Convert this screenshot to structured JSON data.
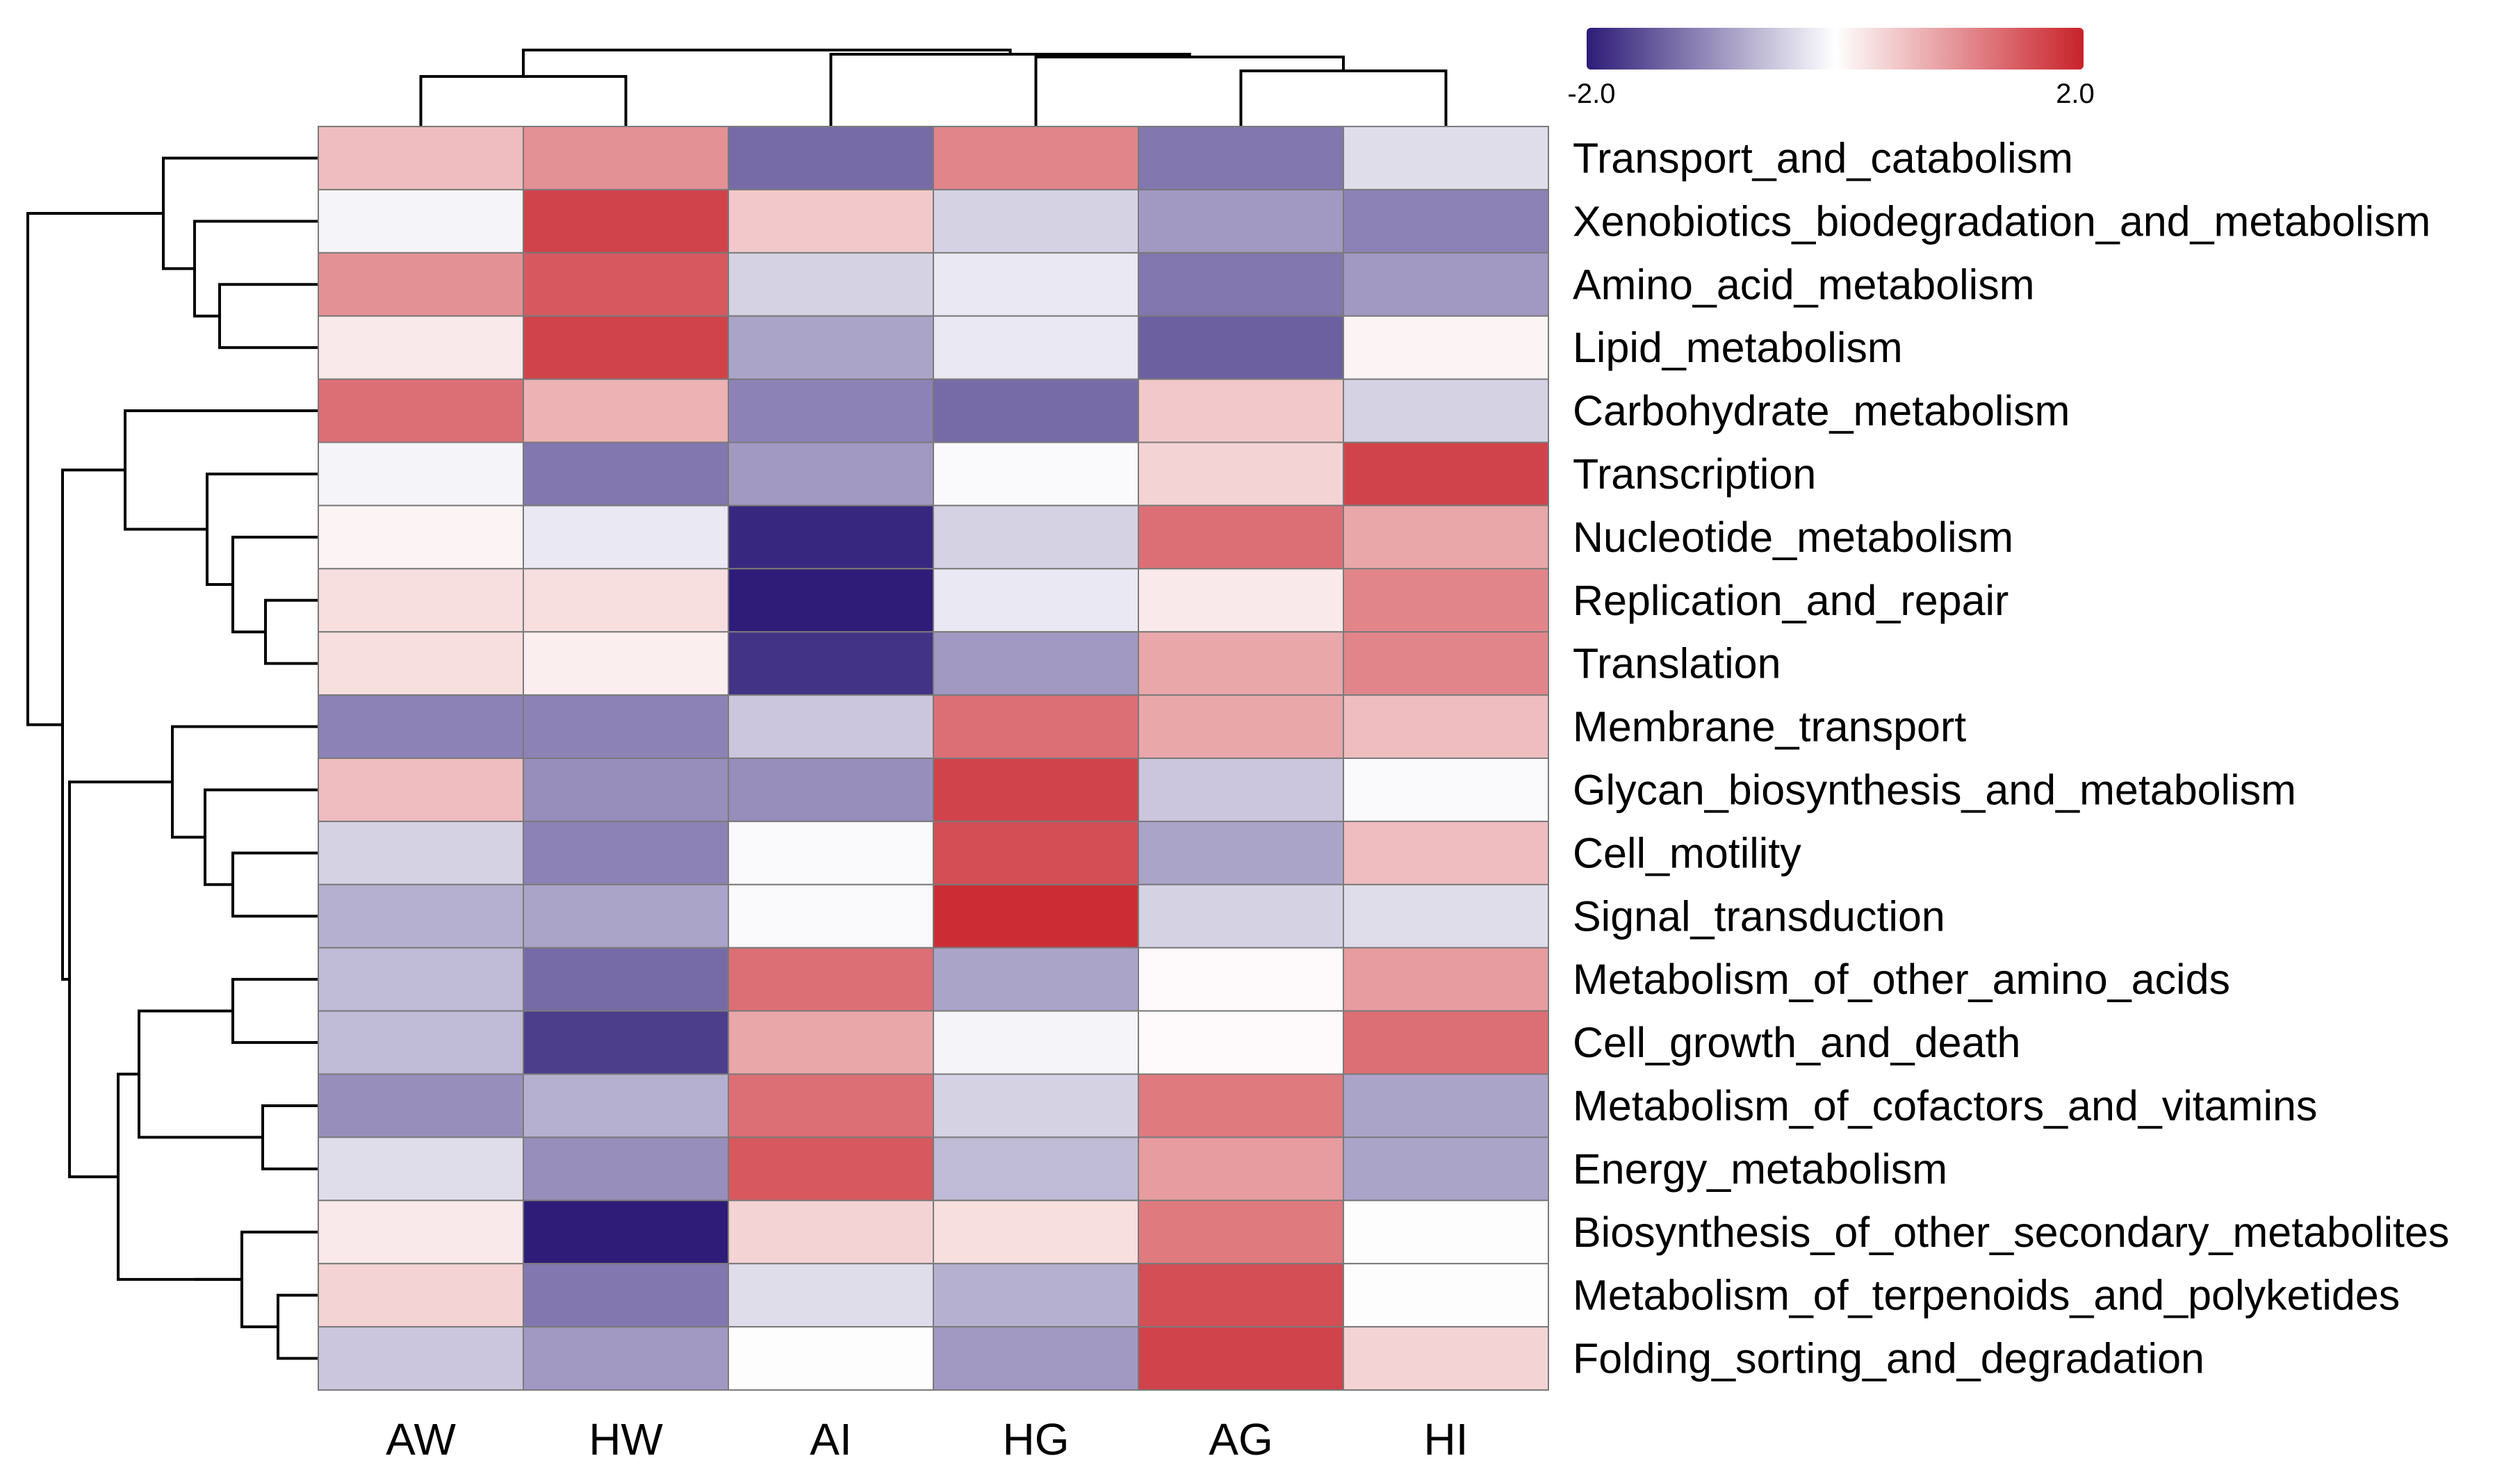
{
  "chart_data": {
    "type": "heatmap",
    "columns": [
      "AW",
      "HW",
      "AI",
      "HG",
      "AG",
      "HI"
    ],
    "rows": [
      "Transport_and_catabolism",
      "Xenobiotics_biodegradation_and_metabolism",
      "Amino_acid_metabolism",
      "Lipid_metabolism",
      "Carbohydrate_metabolism",
      "Transcription",
      "Nucleotide_metabolism",
      "Replication_and_repair",
      "Translation",
      "Membrane_transport",
      "Glycan_biosynthesis_and_metabolism",
      "Cell_motility",
      "Signal_transduction",
      "Metabolism_of_other_amino_acids",
      "Cell_growth_and_death",
      "Metabolism_of_cofactors_and_vitamins",
      "Energy_metabolism",
      "Biosynthesis_of_other_secondary_metabolites",
      "Metabolism_of_terpenoids_and_polyketides",
      "Folding_sorting_and_degradation"
    ],
    "values": [
      [
        0.6,
        1.0,
        -1.3,
        1.1,
        -1.2,
        -0.3
      ],
      [
        -0.1,
        1.7,
        0.5,
        -0.4,
        -0.9,
        -1.1
      ],
      [
        1.0,
        1.5,
        -0.4,
        -0.2,
        -1.2,
        -0.9
      ],
      [
        0.2,
        1.7,
        -0.8,
        -0.2,
        -1.4,
        0.1
      ],
      [
        1.3,
        0.7,
        -1.1,
        -1.3,
        0.5,
        -0.4
      ],
      [
        -0.1,
        -1.2,
        -0.9,
        -0.05,
        0.4,
        1.7
      ],
      [
        0.1,
        -0.2,
        -1.9,
        -0.4,
        1.3,
        0.8
      ],
      [
        0.3,
        0.3,
        -2.0,
        -0.2,
        0.2,
        1.1
      ],
      [
        0.3,
        0.15,
        -1.8,
        -0.9,
        0.8,
        1.1
      ],
      [
        -1.1,
        -1.1,
        -0.5,
        1.3,
        0.8,
        0.6
      ],
      [
        0.6,
        -1.0,
        -1.0,
        1.7,
        -0.5,
        -0.05
      ],
      [
        -0.4,
        -1.1,
        -0.05,
        1.6,
        -0.8,
        0.6
      ],
      [
        -0.7,
        -0.8,
        -0.05,
        1.9,
        -0.4,
        -0.3
      ],
      [
        -0.6,
        -1.3,
        1.3,
        -0.8,
        0.05,
        0.9
      ],
      [
        -0.6,
        -1.7,
        0.8,
        -0.1,
        0.05,
        1.3
      ],
      [
        -1.0,
        -0.7,
        1.3,
        -0.4,
        1.2,
        -0.8
      ],
      [
        -0.3,
        -1.0,
        1.5,
        -0.6,
        0.9,
        -0.8
      ],
      [
        0.2,
        -2.0,
        0.4,
        0.3,
        1.2,
        -0.02
      ],
      [
        0.4,
        -1.2,
        -0.3,
        -0.7,
        1.6,
        0.02
      ],
      [
        -0.5,
        -0.9,
        0.02,
        -0.9,
        1.7,
        0.4
      ]
    ],
    "color_scale": {
      "min": -2.0,
      "max": 2.0,
      "min_label": "-2.0",
      "max_label": "2.0",
      "low_color": "#2e1c78",
      "mid_color": "#ffffff",
      "high_color": "#c9222a"
    },
    "column_dendrogram": {
      "order": [
        "AW",
        "HW",
        "AI",
        "HG",
        "AG",
        "HI"
      ]
    },
    "row_dendrogram": {
      "order": "as rows"
    }
  }
}
